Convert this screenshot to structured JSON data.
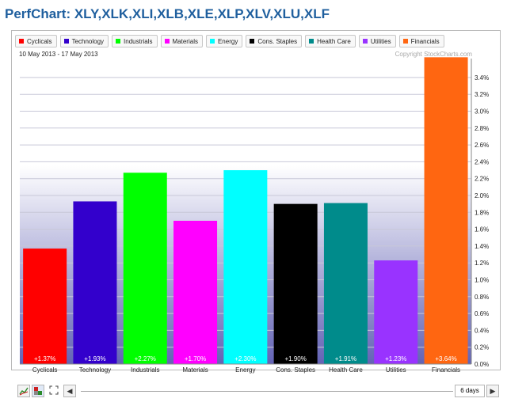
{
  "title": "PerfChart: XLY,XLK,XLI,XLB,XLE,XLP,XLV,XLU,XLF",
  "date_range": "10 May 2013 - 17 May 2013",
  "copyright": "Copyright StockCharts.com",
  "period": "6 days",
  "legend": [
    {
      "label": "Cyclicals",
      "color": "#ff0000"
    },
    {
      "label": "Technology",
      "color": "#3300cc"
    },
    {
      "label": "Industrials",
      "color": "#00ff00"
    },
    {
      "label": "Materials",
      "color": "#ff00ff"
    },
    {
      "label": "Energy",
      "color": "#00ffff"
    },
    {
      "label": "Cons. Staples",
      "color": "#000000"
    },
    {
      "label": "Health Care",
      "color": "#008b8b"
    },
    {
      "label": "Utilities",
      "color": "#9933ff"
    },
    {
      "label": "Financials",
      "color": "#ff6611"
    }
  ],
  "chart_data": {
    "type": "bar",
    "categories": [
      "Cyclicals",
      "Technology",
      "Industrials",
      "Materials",
      "Energy",
      "Cons. Staples",
      "Health Care",
      "Utilities",
      "Financials"
    ],
    "values": [
      1.37,
      1.93,
      2.27,
      1.7,
      2.3,
      1.9,
      1.91,
      1.23,
      3.64
    ],
    "labels": [
      "+1.37%",
      "+1.93%",
      "+2.27%",
      "+1.70%",
      "+2.30%",
      "+1.90%",
      "+1.91%",
      "+1.23%",
      "+3.64%"
    ],
    "colors": [
      "#ff0000",
      "#3300cc",
      "#00ff00",
      "#ff00ff",
      "#00ffff",
      "#000000",
      "#008b8b",
      "#9933ff",
      "#ff6611"
    ],
    "ylim": [
      0,
      3.6
    ],
    "yticks": [
      "0.0%",
      "0.2%",
      "0.4%",
      "0.6%",
      "0.8%",
      "1.0%",
      "1.2%",
      "1.4%",
      "1.6%",
      "1.8%",
      "2.0%",
      "2.2%",
      "2.4%",
      "2.6%",
      "2.8%",
      "3.0%",
      "3.2%",
      "3.4%"
    ],
    "ytick_values": [
      0,
      0.2,
      0.4,
      0.6,
      0.8,
      1.0,
      1.2,
      1.4,
      1.6,
      1.8,
      2.0,
      2.2,
      2.4,
      2.6,
      2.8,
      3.0,
      3.2,
      3.4
    ],
    "grid": true,
    "legend_position": "top"
  }
}
